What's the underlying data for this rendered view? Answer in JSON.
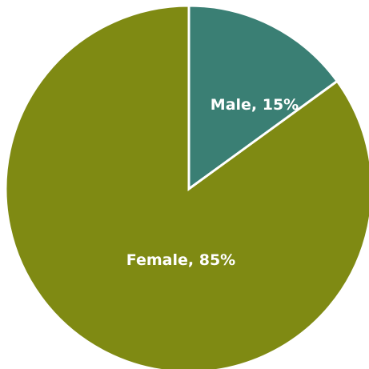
{
  "chart_data": {
    "type": "pie",
    "categories": [
      "Male",
      "Female"
    ],
    "values": [
      15,
      85
    ],
    "labels": [
      "Male, 15%",
      "Female, 85%"
    ],
    "colors": [
      "#3a7f74",
      "#7f8a13"
    ],
    "title": "",
    "legend": "none",
    "start_angle_deg": 0,
    "direction": "clockwise"
  }
}
